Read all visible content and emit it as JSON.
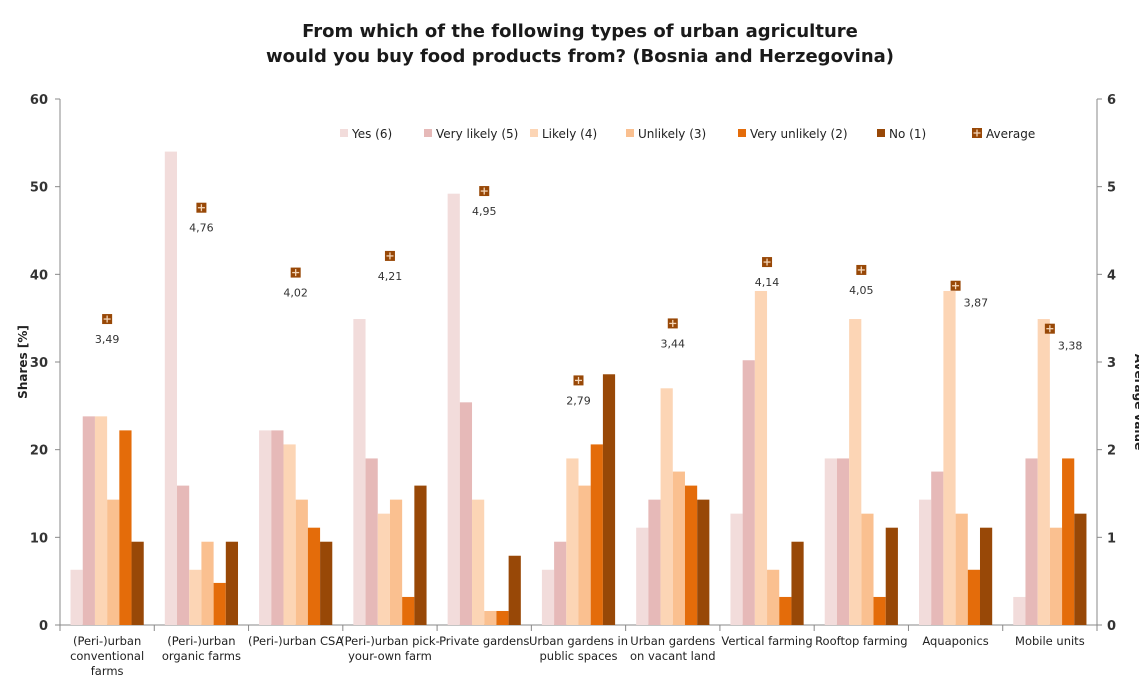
{
  "chart_data": {
    "type": "bar",
    "title_lines": [
      "From which of the following types of urban agriculture",
      "would you buy food products from? (Bosnia and Herzegovina)"
    ],
    "ylabel": "Shares [%]",
    "y2label": "Average value",
    "ylim": [
      0,
      60
    ],
    "y2lim": [
      0,
      6
    ],
    "yticks": [
      0,
      10,
      20,
      30,
      40,
      50,
      60
    ],
    "y2ticks": [
      0,
      1,
      2,
      3,
      4,
      5,
      6
    ],
    "grid": false,
    "legend_position": "top",
    "categories": [
      [
        "(Peri-)urban",
        "conventional",
        "farms"
      ],
      [
        "(Peri-)urban",
        "organic farms"
      ],
      [
        "(Peri-)urban CSA"
      ],
      [
        "(Peri-)urban pick-",
        "your-own farm"
      ],
      [
        "Private gardens"
      ],
      [
        "Urban gardens in",
        "public spaces"
      ],
      [
        "Urban  gardens",
        "on vacant land"
      ],
      [
        "Vertical farming"
      ],
      [
        "Rooftop farming"
      ],
      [
        "Aquaponics"
      ],
      [
        "Mobile units"
      ]
    ],
    "series": [
      {
        "name": "Yes (6)",
        "color": "#f2dcdb",
        "values": [
          6.3,
          54.0,
          22.2,
          34.9,
          49.2,
          6.3,
          11.1,
          12.7,
          19.0,
          14.3,
          3.2
        ]
      },
      {
        "name": "Very likely (5)",
        "color": "#e6b9b8",
        "values": [
          23.8,
          15.9,
          22.2,
          19.0,
          25.4,
          9.5,
          14.3,
          30.2,
          19.0,
          17.5,
          19.0
        ]
      },
      {
        "name": "Likely (4)",
        "color": "#fcd5b5",
        "values": [
          23.8,
          6.3,
          20.6,
          12.7,
          14.3,
          19.0,
          27.0,
          38.1,
          34.9,
          38.1,
          34.9
        ]
      },
      {
        "name": "Unlikely (3)",
        "color": "#fac090",
        "values": [
          14.3,
          9.5,
          14.3,
          14.3,
          1.6,
          15.9,
          17.5,
          6.3,
          12.7,
          12.7,
          11.1
        ]
      },
      {
        "name": "Very unlikely (2)",
        "color": "#e46c0a",
        "values": [
          22.2,
          4.8,
          11.1,
          3.2,
          1.6,
          20.6,
          15.9,
          3.2,
          3.2,
          6.3,
          19.0
        ]
      },
      {
        "name": "No (1)",
        "color": "#984807",
        "values": [
          9.5,
          9.5,
          9.5,
          15.9,
          7.9,
          28.6,
          14.3,
          9.5,
          11.1,
          11.1,
          12.7
        ]
      }
    ],
    "average": {
      "name": "Average",
      "color": "#984807",
      "values": [
        3.49,
        4.76,
        4.02,
        4.21,
        4.95,
        2.79,
        3.44,
        4.14,
        4.05,
        3.87,
        3.38
      ],
      "labels": [
        "3,49",
        "4,76",
        "4,02",
        "4,21",
        "4,95",
        "2,79",
        "3,44",
        "4,14",
        "4,05",
        "3,87",
        "3,38"
      ]
    }
  }
}
